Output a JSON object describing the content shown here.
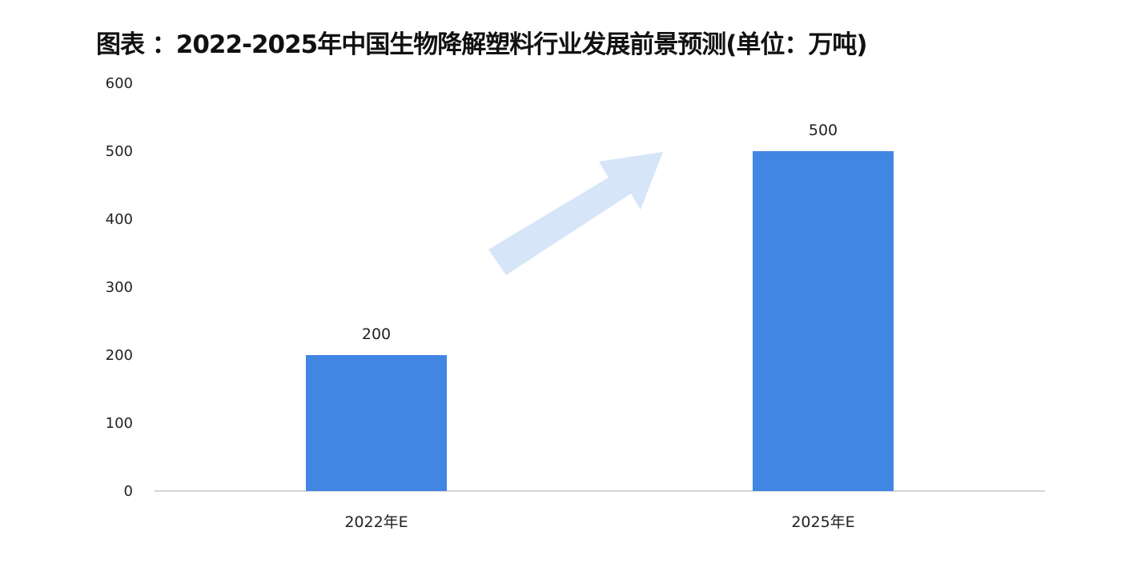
{
  "chart_data": {
    "type": "bar",
    "title": "图表 ：2022-2025年中国生物降解塑料行业发展前景预测(单位：万吨)",
    "categories": [
      "2022年E",
      "2025年E"
    ],
    "values": [
      200,
      500
    ],
    "data_labels": [
      "200",
      "500"
    ],
    "ylim": [
      0,
      600
    ],
    "yticks": [
      "0",
      "100",
      "200",
      "300",
      "400",
      "500",
      "600"
    ],
    "xlabel": "",
    "ylabel": "",
    "grid": false,
    "legend": "none",
    "bar_color": "#4186e3",
    "decoration": "arrow-up-right-icon",
    "arrow_color": "#d6e5f8"
  }
}
